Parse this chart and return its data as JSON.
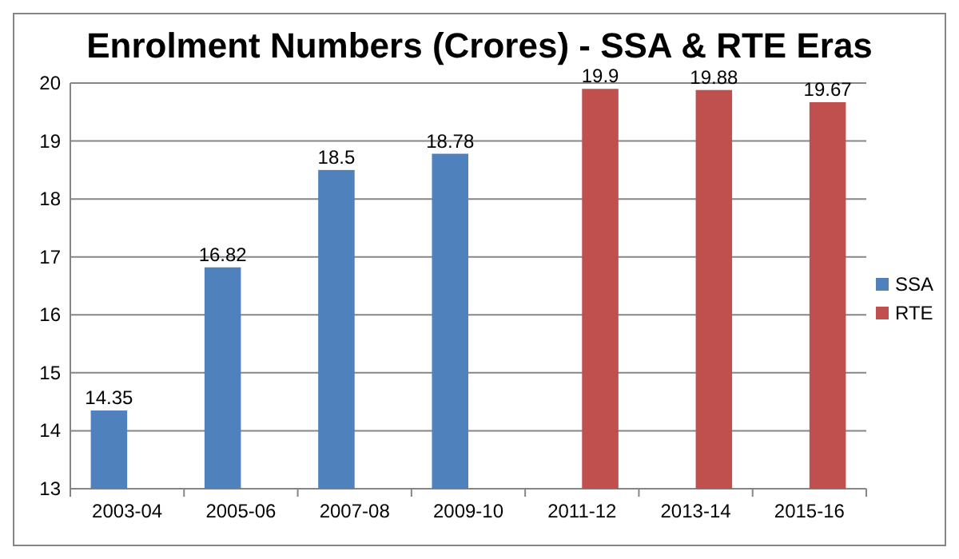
{
  "chart_data": {
    "type": "bar",
    "title": "Enrolment Numbers (Crores) - SSA & RTE Eras",
    "categories": [
      "2003-04",
      "2005-06",
      "2007-08",
      "2009-10",
      "2011-12",
      "2013-14",
      "2015-16"
    ],
    "series": [
      {
        "name": "SSA",
        "color": "#4f81bd",
        "values": [
          14.35,
          16.82,
          18.5,
          18.78,
          null,
          null,
          null
        ]
      },
      {
        "name": "RTE",
        "color": "#c0504d",
        "values": [
          null,
          null,
          null,
          null,
          19.9,
          19.88,
          19.67
        ]
      }
    ],
    "ylim": [
      13,
      20
    ],
    "yticks": [
      13,
      14,
      15,
      16,
      17,
      18,
      19,
      20
    ],
    "grid": "y",
    "legend": "right",
    "data_labels": true
  }
}
